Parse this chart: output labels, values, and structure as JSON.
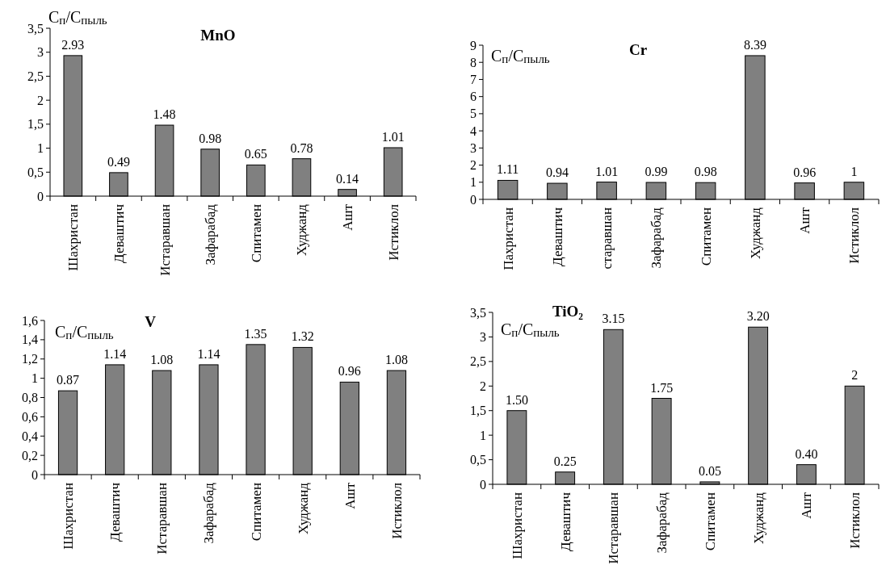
{
  "chart_data": [
    {
      "type": "bar",
      "title": "MnO",
      "ylabel": "C$_{п}$/C$_{пыль}$",
      "categories": [
        "Шахристан",
        "Деваштич",
        "Истаравшан",
        "Зафарабад",
        "Спитамен",
        "Худжанд",
        "Ашт",
        "Истиклол"
      ],
      "values": [
        2.93,
        0.49,
        1.48,
        0.98,
        0.65,
        0.78,
        0.14,
        1.01
      ],
      "value_labels": [
        "2.93",
        "0.49",
        "1.48",
        "0.98",
        "0.65",
        "0.78",
        "0.14",
        "1.01"
      ],
      "color": "#808080",
      "ylim": [
        0,
        3.5
      ],
      "yticks": [
        0,
        {
          "value": 0.5,
          "label": "0,5"
        },
        1,
        {
          "value": 1.5,
          "label": "1,5"
        },
        2,
        {
          "value": 2.5,
          "label": "2,5"
        },
        3,
        {
          "value": 3.5,
          "label": "3,5"
        }
      ]
    },
    {
      "type": "bar",
      "title": "Cr",
      "ylabel": "C$_{п}$/C$_{пыль}$",
      "categories": [
        "Пахристан",
        "Деваштич",
        "старавшан",
        "Зафарабад",
        "Спитамен",
        "Худжанд",
        "Ашт",
        "Истиклол"
      ],
      "values": [
        1.11,
        0.94,
        1.01,
        0.99,
        0.98,
        8.39,
        0.96,
        1
      ],
      "value_labels": [
        "1.11",
        "0.94",
        "1.01",
        "0.99",
        "0.98",
        "8.39",
        "0.96",
        "1"
      ],
      "color": "#808080",
      "ylim": [
        0,
        9
      ],
      "yticks": [
        0,
        1,
        2,
        3,
        4,
        5,
        6,
        7,
        8,
        9
      ]
    },
    {
      "type": "bar",
      "title": "V",
      "ylabel": "C$_{п}$/C$_{пыль}$",
      "categories": [
        "Шахристан",
        "Деваштич",
        "Истаравшан",
        "Зафарабад",
        "Спитамен",
        "Худжанд",
        "Ашт",
        "Истиклол"
      ],
      "values": [
        0.87,
        1.14,
        1.08,
        1.14,
        1.35,
        1.32,
        0.96,
        1.08
      ],
      "value_labels": [
        "0.87",
        "1.14",
        "1.08",
        "1.14",
        "1.35",
        "1.32",
        "0.96",
        "1.08"
      ],
      "color": "#808080",
      "ylim": [
        0,
        1.6
      ],
      "yticks": [
        0,
        {
          "value": 0.2,
          "label": "0,2"
        },
        {
          "value": 0.4,
          "label": "0,4"
        },
        {
          "value": 0.6,
          "label": "0,6"
        },
        {
          "value": 0.8,
          "label": "0,8"
        },
        1,
        {
          "value": 1.2,
          "label": "1,2"
        },
        {
          "value": 1.4,
          "label": "1,4"
        },
        {
          "value": 1.6,
          "label": "1,6"
        }
      ]
    },
    {
      "type": "bar",
      "title": "TiO₂",
      "ylabel": "C$_{п}$/C$_{пыль}$",
      "categories": [
        "Шахристан",
        "Деваштич",
        "Истаравшан",
        "Зафарабад",
        "Спитамен",
        "Худжанд",
        "Ашт",
        "Истиклол"
      ],
      "values": [
        1.5,
        0.25,
        3.15,
        1.75,
        0.05,
        3.2,
        0.4,
        2
      ],
      "value_labels": [
        "1.50",
        "0.25",
        "3.15",
        "1.75",
        "0.05",
        "3.20",
        "0.40",
        "2"
      ],
      "color": "#808080",
      "ylim": [
        0,
        3.5
      ],
      "yticks": [
        0,
        {
          "value": 0.5,
          "label": "0,5"
        },
        1,
        {
          "value": 1.5,
          "label": "1,5"
        },
        2,
        {
          "value": 2.5,
          "label": "2,5"
        },
        3,
        {
          "value": 3.5,
          "label": "3,5"
        }
      ]
    }
  ]
}
